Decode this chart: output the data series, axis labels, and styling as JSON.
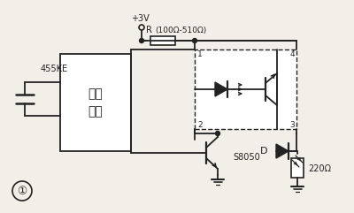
{
  "bg_color": "#f2efe9",
  "line_color": "#222222",
  "text_color": "#222222",
  "chip_label1": "遥控",
  "chip_label2": "芯片",
  "crystal_label": "455KE",
  "transistor_label": "S8050",
  "resistor_label": "R",
  "resistor_range": "(100Ω-510Ω)",
  "voltage_label": "+3V",
  "resistor2_label": "220Ω",
  "diode_label": "D",
  "node1": "1",
  "node2": "2",
  "node3": "3",
  "node4": "4",
  "circle_label": "①"
}
